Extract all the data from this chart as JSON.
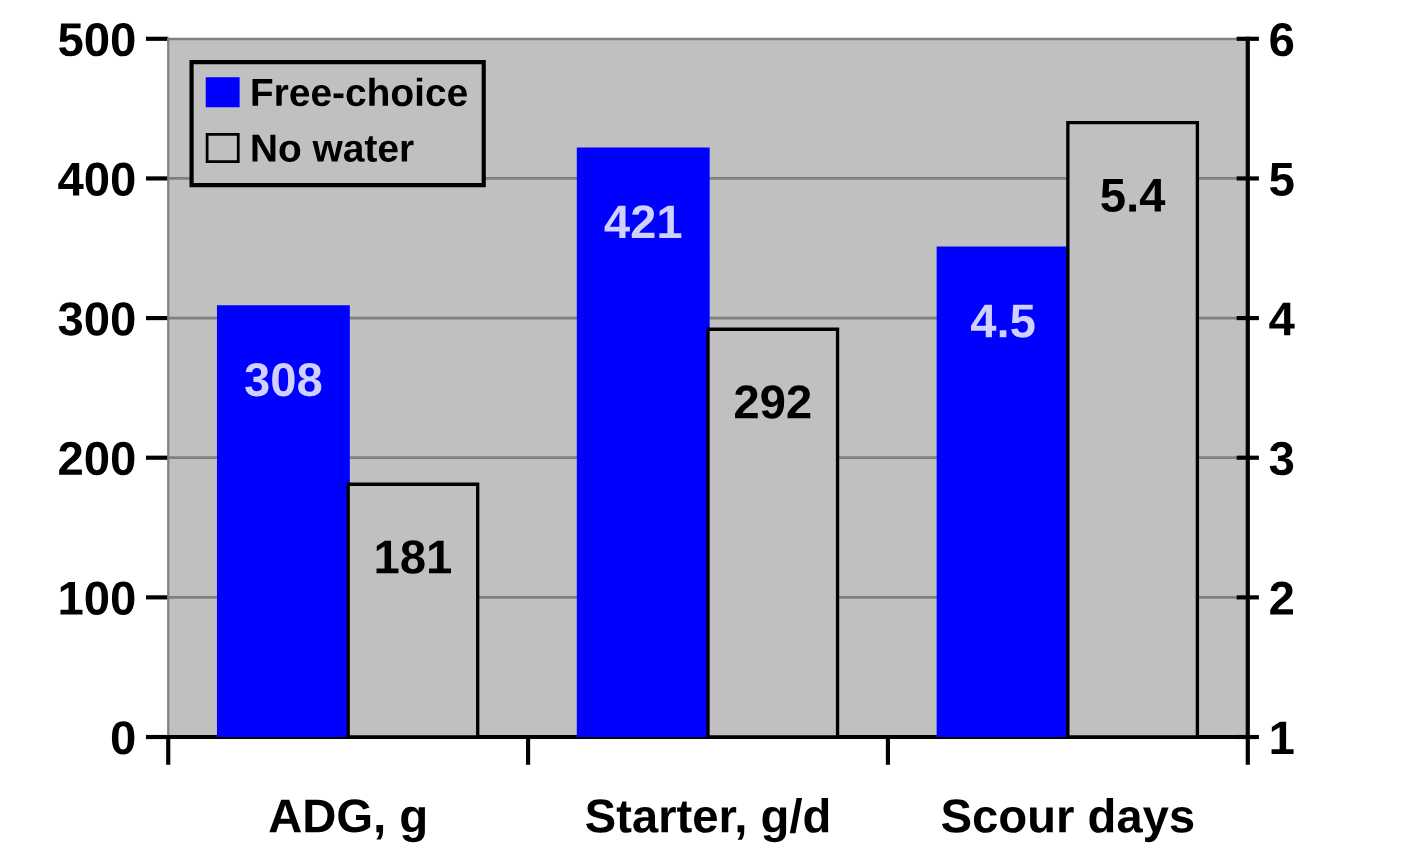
{
  "chart_data": {
    "type": "bar",
    "categories": [
      "ADG, g",
      "Starter, g/d",
      "Scour days"
    ],
    "series": [
      {
        "name": "Free-choice",
        "color": "#0000ff",
        "values": [
          308,
          421,
          null
        ]
      },
      {
        "name": "No water",
        "color": "#c0c0c0",
        "values": [
          181,
          292,
          null
        ]
      },
      {
        "color": "#0000ff",
        "axis": "y2",
        "values": [
          null,
          null,
          4.5
        ]
      },
      {
        "color": "#c0c0c0",
        "axis": "y2",
        "values": [
          null,
          null,
          5.4
        ]
      }
    ],
    "ylim": [
      0,
      500
    ],
    "yticks": [
      0,
      100,
      200,
      300,
      400,
      500
    ],
    "y2lim": [
      1,
      6
    ],
    "y2ticks": [
      1,
      2,
      3,
      4,
      5,
      6
    ],
    "grid": "y",
    "legend": "top left",
    "data_labels": true
  }
}
